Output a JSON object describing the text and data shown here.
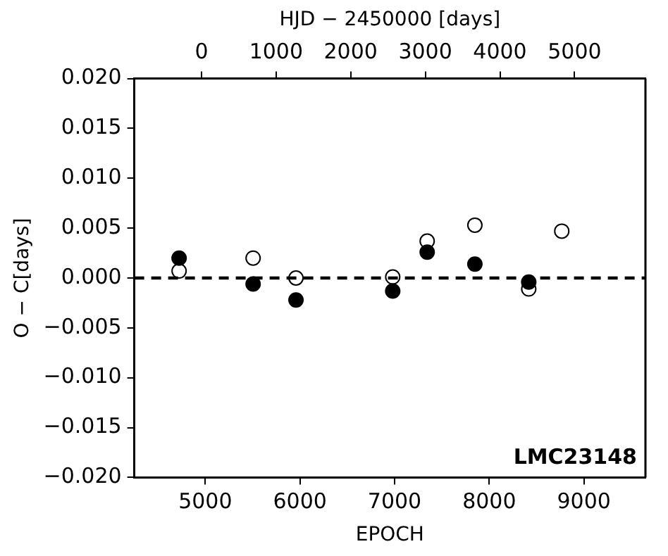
{
  "chart_data": {
    "type": "scatter",
    "xlabel": "EPOCH",
    "ylabel": "O − C[days]",
    "x2label": "HJD − 2450000 [days]",
    "series": [
      {
        "color": "#000000",
        "x": [
          4723,
          5505,
          5958,
          6980,
          7344,
          7848,
          8417
        ],
        "values": [
          0.002,
          -0.0006,
          -0.0022,
          -0.0013,
          0.0026,
          0.0014,
          -0.0004
        ]
      },
      {
        "color": "#ffffff",
        "x": [
          4723,
          5505,
          5958,
          6980,
          7344,
          7848,
          8417,
          8766
        ],
        "values": [
          0.0007,
          0.002,
          0.0,
          0.0001,
          0.0037,
          0.0053,
          -0.0011,
          0.0047
        ]
      }
    ],
    "xlim": [
      4250,
      9650
    ],
    "xticks": [
      5000,
      6000,
      7000,
      8000,
      9000
    ],
    "x2lim": [
      -900,
      5950
    ],
    "x2ticks": [
      0,
      1000,
      2000,
      3000,
      4000,
      5000
    ],
    "ylim": [
      -0.02,
      0.02
    ],
    "yticks": [
      {
        "value": -0.02,
        "label": "−0.020"
      },
      {
        "value": -0.015,
        "label": "−0.015"
      },
      {
        "value": -0.01,
        "label": "−0.010"
      },
      {
        "value": -0.005,
        "label": "−0.005"
      },
      {
        "value": 0,
        "label": "0.000"
      },
      {
        "value": 0.005,
        "label": "0.005"
      },
      {
        "value": 0.01,
        "label": "0.010"
      },
      {
        "value": 0.015,
        "label": "0.015"
      },
      {
        "value": 0.02,
        "label": "0.020"
      }
    ],
    "ref_lines": [
      {
        "axis": "y",
        "value": 0,
        "line_style": "dashed",
        "color": "#000000"
      }
    ],
    "annotations": [
      "LMC23148"
    ],
    "marker": "circle",
    "grid": false,
    "legend": false
  }
}
